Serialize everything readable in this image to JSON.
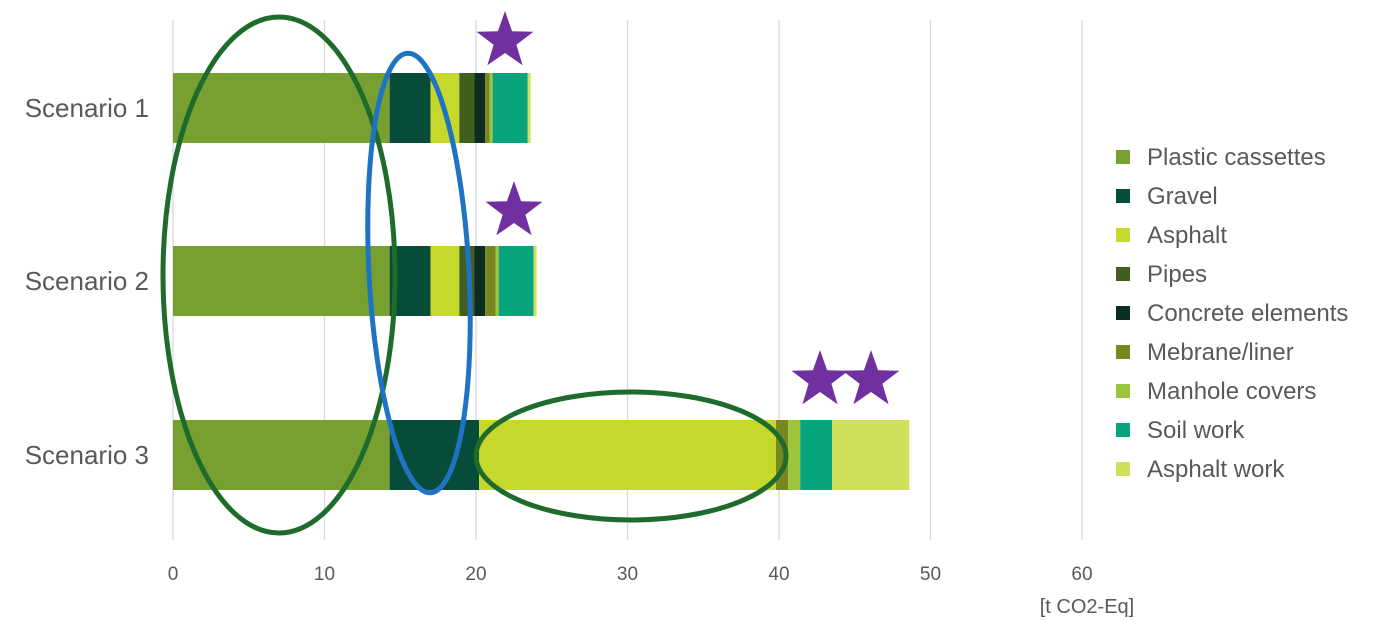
{
  "chart_data": {
    "type": "bar",
    "orientation": "horizontal",
    "stacked": true,
    "categories": [
      "Scenario 1",
      "Scenario 2",
      "Scenario 3"
    ],
    "series": [
      {
        "name": "Plastic cassettes",
        "color": "#77a030",
        "values": [
          14.3,
          14.3,
          14.3
        ]
      },
      {
        "name": "Gravel",
        "color": "#064c38",
        "values": [
          2.7,
          2.7,
          5.9
        ]
      },
      {
        "name": "Asphalt",
        "color": "#c5d82b",
        "values": [
          1.9,
          1.9,
          19.6
        ]
      },
      {
        "name": "Pipes",
        "color": "#425f1e",
        "values": [
          1.0,
          1.0,
          0.0
        ]
      },
      {
        "name": "Concrete elements",
        "color": "#0b2d22",
        "values": [
          0.7,
          0.7,
          0.0
        ]
      },
      {
        "name": "Mebrane/liner",
        "color": "#78881f",
        "values": [
          0.3,
          0.7,
          0.8
        ]
      },
      {
        "name": "Manhole covers",
        "color": "#9cc43d",
        "values": [
          0.2,
          0.2,
          0.8
        ]
      },
      {
        "name": "Soil work",
        "color": "#08a47e",
        "values": [
          2.3,
          2.3,
          2.1
        ]
      },
      {
        "name": "Asphalt work",
        "color": "#cfe05a",
        "values": [
          0.2,
          0.2,
          5.1
        ]
      }
    ],
    "xlim": [
      0,
      60
    ],
    "xticks": [
      "0",
      "10",
      "20",
      "30",
      "40",
      "50",
      "60"
    ],
    "xlabel": "[t CO2-Eq]",
    "ylabel": "",
    "grid": "vertical",
    "legend": "right",
    "annotations": [
      {
        "type": "ellipse",
        "color": "#1e6b2b",
        "description": "green ellipse around Plastic cassettes segments of all scenarios"
      },
      {
        "type": "ellipse",
        "color": "#1f73c4",
        "description": "blue ellipse around Gravel segments"
      },
      {
        "type": "ellipse",
        "color": "#1e6b2b",
        "description": "green ellipse around Scenario 3 Asphalt segment"
      },
      {
        "type": "star",
        "color": "#7030a0",
        "count": 1,
        "scenario": "Scenario 1"
      },
      {
        "type": "star",
        "color": "#7030a0",
        "count": 1,
        "scenario": "Scenario 2"
      },
      {
        "type": "star",
        "color": "#7030a0",
        "count": 2,
        "scenario": "Scenario 3"
      }
    ]
  }
}
